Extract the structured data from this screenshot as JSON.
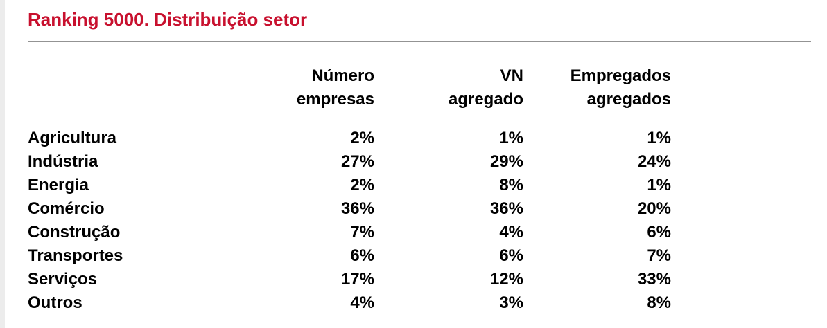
{
  "colors": {
    "accent_red": "#C8102E",
    "rule_gray": "#939393",
    "left_strip_gray": "#ececec",
    "text": "#000000",
    "background": "#ffffff"
  },
  "title": "Ranking 5000. Distribuição setor",
  "table": {
    "columns": [
      {
        "line1": "Número",
        "line2": "empresas"
      },
      {
        "line1": "VN",
        "line2": "agregado"
      },
      {
        "line1": "Empregados",
        "line2": "agregados"
      }
    ],
    "rows": [
      {
        "sector": "Agricultura",
        "values": [
          "2%",
          "1%",
          "1%"
        ]
      },
      {
        "sector": "Indústria",
        "values": [
          "27%",
          "29%",
          "24%"
        ]
      },
      {
        "sector": "Energia",
        "values": [
          "2%",
          "8%",
          "1%"
        ]
      },
      {
        "sector": "Comércio",
        "values": [
          "36%",
          "36%",
          "20%"
        ]
      },
      {
        "sector": "Construção",
        "values": [
          "7%",
          "4%",
          "6%"
        ]
      },
      {
        "sector": "Transportes",
        "values": [
          "6%",
          "6%",
          "7%"
        ]
      },
      {
        "sector": "Serviços",
        "values": [
          "17%",
          "12%",
          "33%"
        ]
      },
      {
        "sector": "Outros",
        "values": [
          "4%",
          "3%",
          "8%"
        ]
      }
    ]
  },
  "chart_data": {
    "type": "table",
    "title": "Ranking 5000. Distribuição setor",
    "categories": [
      "Agricultura",
      "Indústria",
      "Energia",
      "Comércio",
      "Construção",
      "Transportes",
      "Serviços",
      "Outros"
    ],
    "series": [
      {
        "name": "Número empresas",
        "values": [
          2,
          27,
          2,
          36,
          7,
          6,
          17,
          4
        ]
      },
      {
        "name": "VN agregado",
        "values": [
          1,
          29,
          8,
          36,
          4,
          6,
          12,
          3
        ]
      },
      {
        "name": "Empregados agregados",
        "values": [
          1,
          24,
          1,
          20,
          6,
          7,
          33,
          8
        ]
      }
    ],
    "unit": "%"
  }
}
